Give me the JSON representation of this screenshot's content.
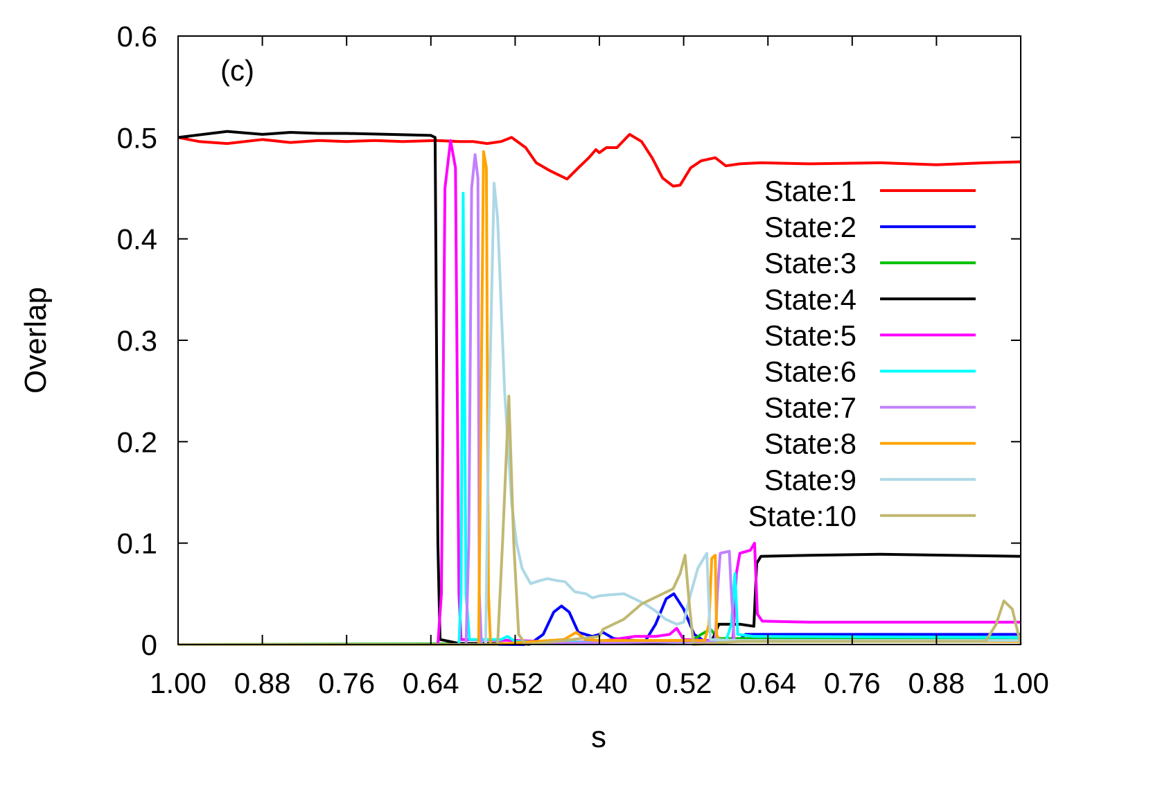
{
  "chart_data": {
    "type": "line",
    "panel_label": "(c)",
    "xlabel": "s",
    "ylabel": "Overlap",
    "ylim": [
      0,
      0.6
    ],
    "yticks": [
      "0",
      "0.1",
      "0.2",
      "0.3",
      "0.4",
      "0.5",
      "0.6"
    ],
    "xticks": [
      "1.00",
      "0.88",
      "0.76",
      "0.64",
      "0.52",
      "0.40",
      "0.52",
      "0.64",
      "0.76",
      "0.88",
      "1.00"
    ],
    "x_path": "s sweeps forward from 1.00 down to 0.40, then reverse from 0.40 back up to 1.00",
    "grid": false,
    "legend_position": "right",
    "series": [
      {
        "name": "State:1",
        "color": "#ff0000",
        "forward": [
          [
            1,
            0.5
          ],
          [
            0.97,
            0.496
          ],
          [
            0.93,
            0.494
          ],
          [
            0.88,
            0.498
          ],
          [
            0.84,
            0.495
          ],
          [
            0.8,
            0.497
          ],
          [
            0.76,
            0.496
          ],
          [
            0.72,
            0.497
          ],
          [
            0.68,
            0.496
          ],
          [
            0.632,
            0.497
          ],
          [
            0.6,
            0.496
          ],
          [
            0.58,
            0.496
          ],
          [
            0.56,
            0.494
          ],
          [
            0.54,
            0.496
          ],
          [
            0.525,
            0.5
          ],
          [
            0.505,
            0.49
          ],
          [
            0.49,
            0.475
          ],
          [
            0.47,
            0.467
          ],
          [
            0.446,
            0.459
          ],
          [
            0.43,
            0.47
          ],
          [
            0.415,
            0.48
          ],
          [
            0.405,
            0.488
          ],
          [
            0.4,
            0.485
          ]
        ],
        "reverse": [
          [
            0.4,
            0.485
          ],
          [
            0.41,
            0.49
          ],
          [
            0.425,
            0.49
          ],
          [
            0.443,
            0.503
          ],
          [
            0.46,
            0.496
          ],
          [
            0.475,
            0.48
          ],
          [
            0.49,
            0.46
          ],
          [
            0.505,
            0.452
          ],
          [
            0.515,
            0.453
          ],
          [
            0.53,
            0.47
          ],
          [
            0.545,
            0.477
          ],
          [
            0.565,
            0.48
          ],
          [
            0.58,
            0.472
          ],
          [
            0.6,
            0.474
          ],
          [
            0.63,
            0.475
          ],
          [
            0.7,
            0.474
          ],
          [
            0.8,
            0.475
          ],
          [
            0.88,
            0.473
          ],
          [
            0.95,
            0.475
          ],
          [
            1,
            0.476
          ]
        ]
      },
      {
        "name": "State:2",
        "color": "#0000ff",
        "forward": [
          [
            1,
            0
          ],
          [
            0.5,
            0
          ],
          [
            0.48,
            0.01
          ],
          [
            0.465,
            0.032
          ],
          [
            0.454,
            0.038
          ],
          [
            0.443,
            0.032
          ],
          [
            0.43,
            0.012
          ],
          [
            0.41,
            0.008
          ],
          [
            0.4,
            0.01
          ]
        ],
        "reverse": [
          [
            0.4,
            0.01
          ],
          [
            0.405,
            0.012
          ],
          [
            0.42,
            0.006
          ],
          [
            0.465,
            0.003
          ],
          [
            0.48,
            0.02
          ],
          [
            0.495,
            0.045
          ],
          [
            0.506,
            0.05
          ],
          [
            0.52,
            0.035
          ],
          [
            0.535,
            0.01
          ],
          [
            0.55,
            0.003
          ],
          [
            0.6,
            0.005
          ],
          [
            0.608,
            0.01
          ],
          [
            1,
            0.01
          ]
        ]
      },
      {
        "name": "State:3",
        "color": "#00c000",
        "forward": [
          [
            1,
            0
          ],
          [
            0.4,
            0.001
          ]
        ],
        "reverse": [
          [
            0.4,
            0.001
          ],
          [
            0.53,
            0.003
          ],
          [
            0.545,
            0.01
          ],
          [
            0.558,
            0.015
          ],
          [
            0.57,
            0.006
          ],
          [
            1,
            0.005
          ]
        ]
      },
      {
        "name": "State:4",
        "color": "#000000",
        "forward": [
          [
            1,
            0.5
          ],
          [
            0.93,
            0.506
          ],
          [
            0.88,
            0.503
          ],
          [
            0.84,
            0.505
          ],
          [
            0.8,
            0.504
          ],
          [
            0.76,
            0.504
          ],
          [
            0.7,
            0.503
          ],
          [
            0.64,
            0.502
          ],
          [
            0.634,
            0.5
          ],
          [
            0.63,
            0.1
          ],
          [
            0.627,
            0.005
          ],
          [
            0.6,
            0.001
          ],
          [
            0.4,
            0.001
          ]
        ],
        "reverse": [
          [
            0.4,
            0.001
          ],
          [
            0.56,
            0.003
          ],
          [
            0.57,
            0.02
          ],
          [
            0.6,
            0.02
          ],
          [
            0.62,
            0.018
          ],
          [
            0.624,
            0.08
          ],
          [
            0.63,
            0.087
          ],
          [
            0.7,
            0.088
          ],
          [
            0.8,
            0.089
          ],
          [
            0.9,
            0.088
          ],
          [
            1,
            0.087
          ]
        ]
      },
      {
        "name": "State:5",
        "color": "#ff00ff",
        "forward": [
          [
            1,
            0
          ],
          [
            0.63,
            0
          ],
          [
            0.625,
            0.05
          ],
          [
            0.62,
            0.45
          ],
          [
            0.612,
            0.497
          ],
          [
            0.605,
            0.47
          ],
          [
            0.6,
            0.05
          ],
          [
            0.597,
            0.005
          ],
          [
            0.52,
            0.004
          ],
          [
            0.45,
            0.002
          ],
          [
            0.4,
            0.003
          ]
        ],
        "reverse": [
          [
            0.4,
            0.003
          ],
          [
            0.45,
            0.008
          ],
          [
            0.48,
            0.008
          ],
          [
            0.5,
            0.01
          ],
          [
            0.51,
            0.016
          ],
          [
            0.52,
            0.005
          ],
          [
            0.59,
            0.003
          ],
          [
            0.595,
            0.07
          ],
          [
            0.6,
            0.09
          ],
          [
            0.615,
            0.093
          ],
          [
            0.621,
            0.1
          ],
          [
            0.625,
            0.03
          ],
          [
            0.632,
            0.023
          ],
          [
            0.7,
            0.022
          ],
          [
            1,
            0.022
          ]
        ]
      },
      {
        "name": "State:6",
        "color": "#00ffff",
        "forward": [
          [
            1,
            0
          ],
          [
            0.6,
            0
          ],
          [
            0.597,
            0.05
          ],
          [
            0.594,
            0.445
          ],
          [
            0.59,
            0.05
          ],
          [
            0.585,
            0.005
          ],
          [
            0.54,
            0.005
          ],
          [
            0.531,
            0.008
          ],
          [
            0.52,
            0.003
          ],
          [
            0.4,
            0.002
          ]
        ],
        "reverse": [
          [
            0.4,
            0.002
          ],
          [
            0.58,
            0.003
          ],
          [
            0.588,
            0.02
          ],
          [
            0.593,
            0.07
          ],
          [
            0.597,
            0.01
          ],
          [
            0.62,
            0.008
          ],
          [
            1,
            0.007
          ]
        ]
      },
      {
        "name": "State:7",
        "color": "#c080ff",
        "forward": [
          [
            1,
            0
          ],
          [
            0.59,
            0
          ],
          [
            0.586,
            0.1
          ],
          [
            0.582,
            0.45
          ],
          [
            0.577,
            0.483
          ],
          [
            0.573,
            0.46
          ],
          [
            0.571,
            0.05
          ],
          [
            0.568,
            0
          ],
          [
            0.4,
            0.002
          ]
        ],
        "reverse": [
          [
            0.4,
            0.002
          ],
          [
            0.565,
            0.003
          ],
          [
            0.568,
            0.05
          ],
          [
            0.572,
            0.09
          ],
          [
            0.585,
            0.092
          ],
          [
            0.588,
            0.05
          ],
          [
            0.592,
            0.004
          ],
          [
            1,
            0.003
          ]
        ]
      },
      {
        "name": "State:8",
        "color": "#ffa500",
        "forward": [
          [
            1,
            0
          ],
          [
            0.572,
            0
          ],
          [
            0.569,
            0.2
          ],
          [
            0.565,
            0.486
          ],
          [
            0.561,
            0.47
          ],
          [
            0.558,
            0.05
          ],
          [
            0.555,
            0
          ],
          [
            0.45,
            0.005
          ],
          [
            0.433,
            0.012
          ],
          [
            0.42,
            0.005
          ],
          [
            0.4,
            0.004
          ]
        ],
        "reverse": [
          [
            0.4,
            0.004
          ],
          [
            0.55,
            0.004
          ],
          [
            0.556,
            0.02
          ],
          [
            0.56,
            0.085
          ],
          [
            0.565,
            0.088
          ],
          [
            0.567,
            0.01
          ],
          [
            0.57,
            0.004
          ],
          [
            1,
            0.003
          ]
        ]
      },
      {
        "name": "State:9",
        "color": "#add8e6",
        "forward": [
          [
            1,
            0
          ],
          [
            0.562,
            0
          ],
          [
            0.558,
            0.2
          ],
          [
            0.55,
            0.455
          ],
          [
            0.545,
            0.42
          ],
          [
            0.535,
            0.25
          ],
          [
            0.525,
            0.14
          ],
          [
            0.518,
            0.1
          ],
          [
            0.51,
            0.075
          ],
          [
            0.498,
            0.06
          ],
          [
            0.485,
            0.063
          ],
          [
            0.474,
            0.065
          ],
          [
            0.46,
            0.063
          ],
          [
            0.449,
            0.062
          ],
          [
            0.435,
            0.052
          ],
          [
            0.419,
            0.05
          ],
          [
            0.41,
            0.046
          ],
          [
            0.4,
            0.048
          ]
        ],
        "reverse": [
          [
            0.4,
            0.048
          ],
          [
            0.415,
            0.049
          ],
          [
            0.435,
            0.05
          ],
          [
            0.45,
            0.045
          ],
          [
            0.465,
            0.04
          ],
          [
            0.48,
            0.033
          ],
          [
            0.494,
            0.025
          ],
          [
            0.51,
            0.02
          ],
          [
            0.52,
            0.022
          ],
          [
            0.53,
            0.05
          ],
          [
            0.54,
            0.075
          ],
          [
            0.553,
            0.09
          ],
          [
            0.558,
            0.005
          ],
          [
            0.6,
            0.004
          ],
          [
            1,
            0.004
          ]
        ]
      },
      {
        "name": "State:10",
        "color": "#c0b870",
        "forward": [
          [
            1,
            0
          ],
          [
            0.545,
            0
          ],
          [
            0.538,
            0.1
          ],
          [
            0.529,
            0.245
          ],
          [
            0.522,
            0.1
          ],
          [
            0.515,
            0.01
          ],
          [
            0.505,
            0
          ],
          [
            0.45,
            0.004
          ],
          [
            0.4,
            0.008
          ]
        ],
        "reverse": [
          [
            0.4,
            0.008
          ],
          [
            0.405,
            0.015
          ],
          [
            0.435,
            0.025
          ],
          [
            0.46,
            0.04
          ],
          [
            0.484,
            0.048
          ],
          [
            0.505,
            0.055
          ],
          [
            0.515,
            0.07
          ],
          [
            0.522,
            0.088
          ],
          [
            0.528,
            0.04
          ],
          [
            0.534,
            0
          ],
          [
            0.6,
            0.003
          ],
          [
            0.95,
            0.003
          ],
          [
            0.965,
            0.02
          ],
          [
            0.976,
            0.043
          ],
          [
            0.988,
            0.035
          ],
          [
            1,
            0
          ]
        ]
      }
    ]
  }
}
